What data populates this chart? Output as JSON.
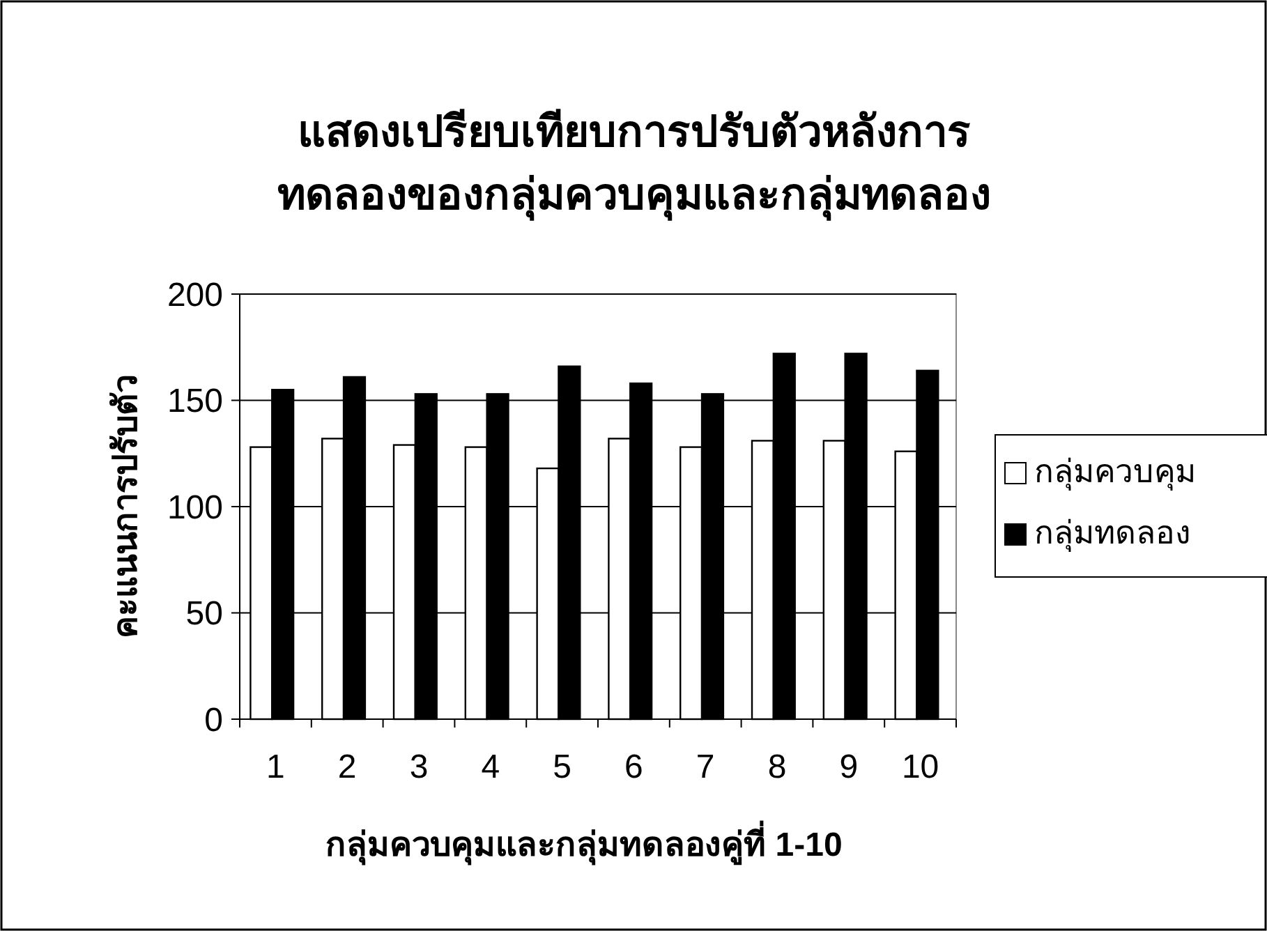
{
  "chart_data": {
    "type": "bar",
    "title": "แสดงเปรียบเทียบการปรับตัวหลังการ\nทดลองของกลุ่มควบคุมและกลุ่มทดลอง",
    "xlabel": "กลุ่มควบคุมและกลุ่มทดลองคู่ที่ 1-10",
    "ylabel": "คะแนนการปรับตัว",
    "categories": [
      "1",
      "2",
      "3",
      "4",
      "5",
      "6",
      "7",
      "8",
      "9",
      "10"
    ],
    "series": [
      {
        "name": "กลุ่มควบคุม",
        "color": "#ffffff",
        "values": [
          128,
          132,
          129,
          128,
          118,
          132,
          128,
          131,
          131,
          126
        ]
      },
      {
        "name": "กลุ่มทดลอง",
        "color": "#000000",
        "values": [
          155,
          161,
          153,
          153,
          166,
          158,
          153,
          172,
          172,
          164
        ]
      }
    ],
    "ylim": [
      0,
      200
    ],
    "yticks": [
      0,
      50,
      100,
      150,
      200
    ],
    "grid": "y",
    "legend": "right"
  }
}
